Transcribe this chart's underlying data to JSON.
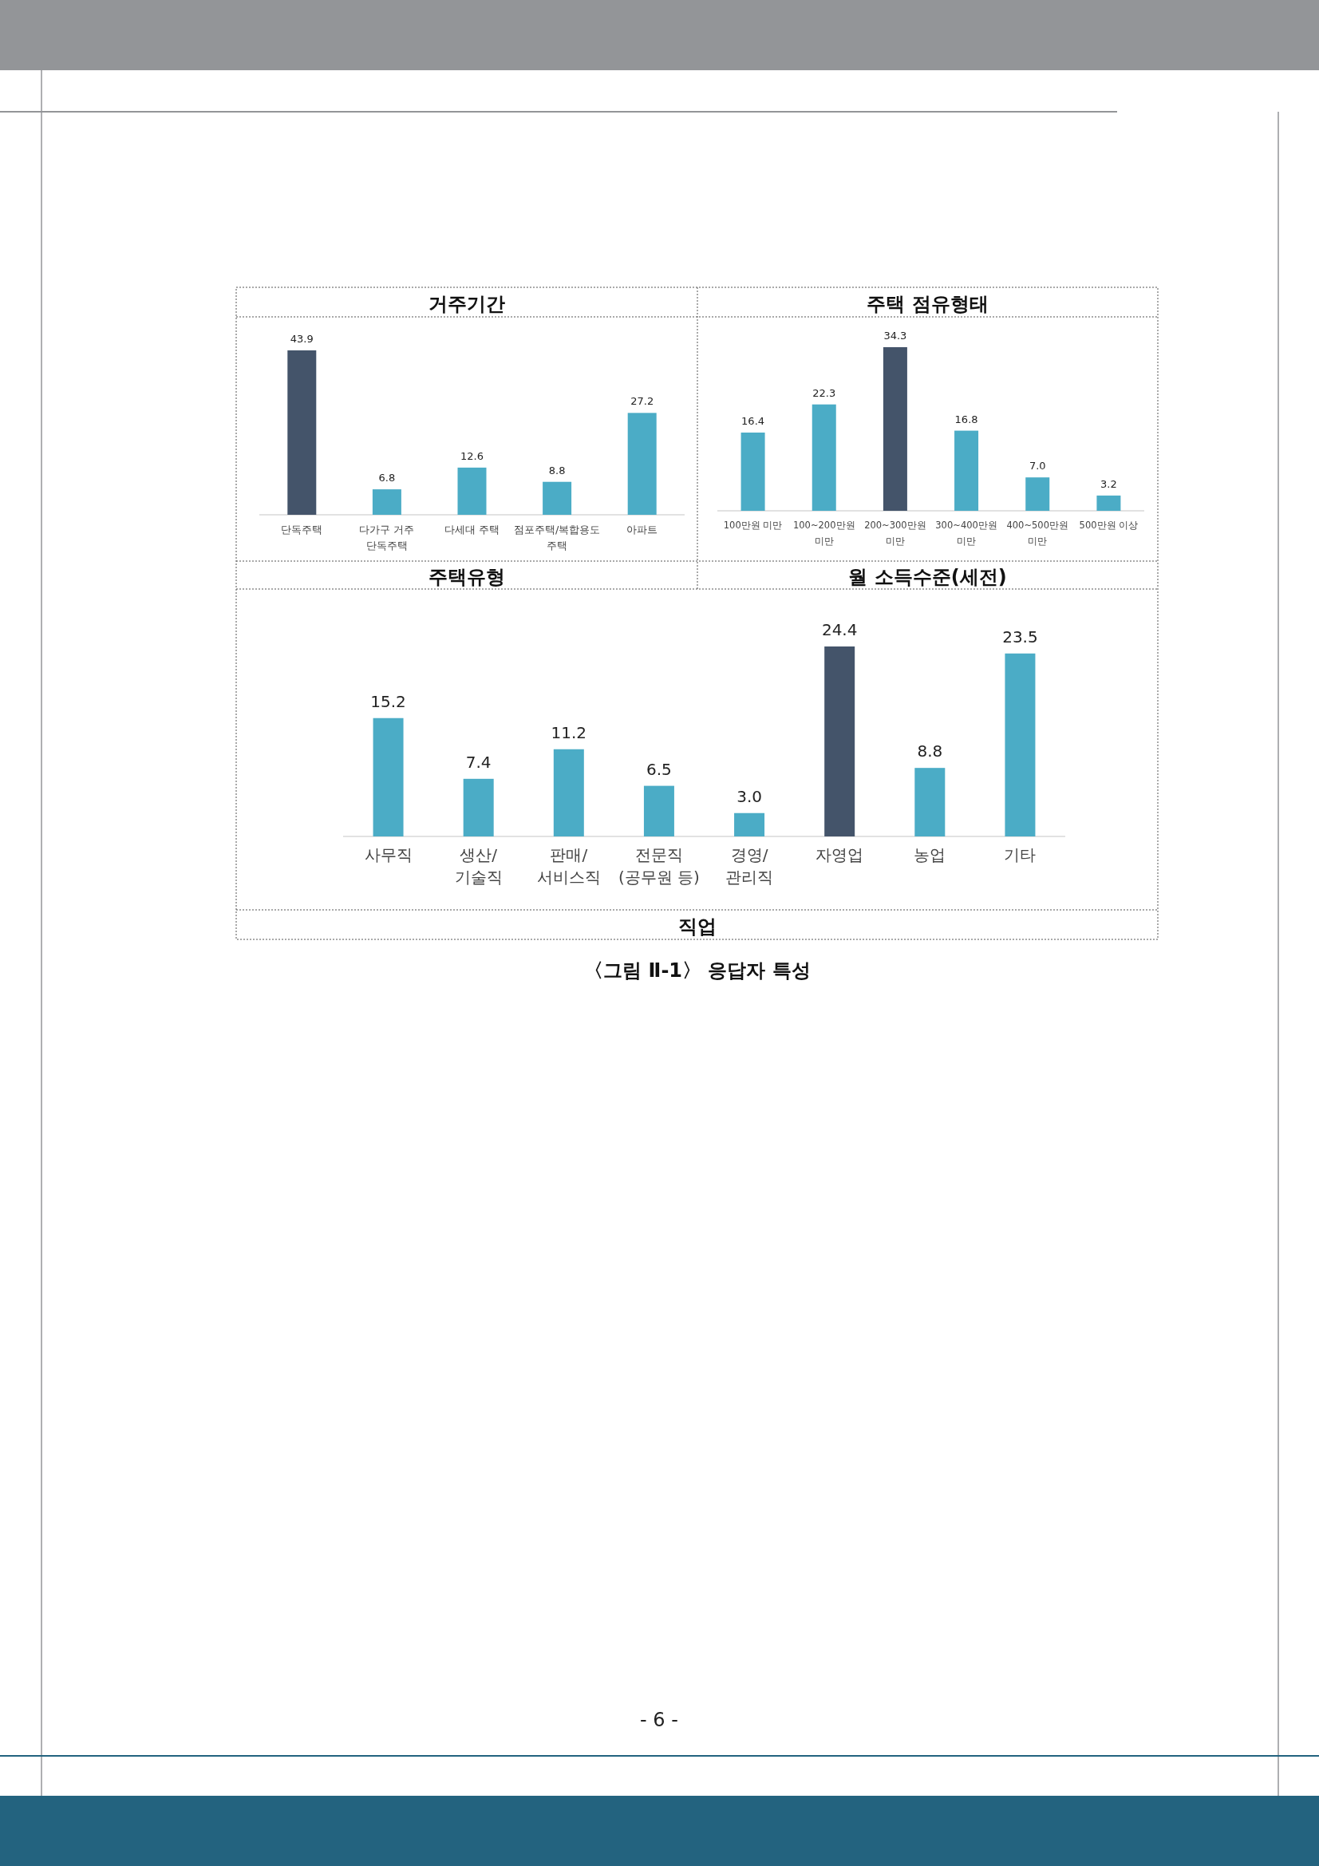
{
  "chart_data": [
    {
      "type": "bar",
      "title": "거주기간",
      "xlabel": "주택유형",
      "categories": [
        "단독주택",
        "다가구 거주\n단독주택",
        "다세대 주택",
        "점포주택/복합용도\n주택",
        "아파트"
      ],
      "values": [
        43.9,
        6.8,
        12.6,
        8.8,
        27.2
      ],
      "colors": [
        "#44546a",
        "#4bacc6",
        "#4bacc6",
        "#4bacc6",
        "#4bacc6"
      ],
      "value_labels": [
        "43.9",
        "6.8",
        "12.6",
        "8.8",
        "27.2"
      ]
    },
    {
      "type": "bar",
      "title": "주택 점유형태",
      "xlabel": "월 소득수준(세전)",
      "categories": [
        "100만원 미만",
        "100~200만원\n미만",
        "200~300만원\n미만",
        "300~400만원\n미만",
        "400~500만원\n미만",
        "500만원 이상"
      ],
      "values": [
        16.4,
        22.3,
        34.3,
        16.8,
        7.0,
        3.2
      ],
      "colors": [
        "#4bacc6",
        "#4bacc6",
        "#44546a",
        "#4bacc6",
        "#4bacc6",
        "#4bacc6"
      ],
      "value_labels": [
        "16.4",
        "22.3",
        "34.3",
        "16.8",
        "7.0",
        "3.2"
      ]
    },
    {
      "type": "bar",
      "xlabel": "직업",
      "categories": [
        "사무직",
        "생산/\n기술직",
        "판매/\n서비스직",
        "전문직\n(공무원 등)",
        "경영/\n관리직",
        "자영업",
        "농업",
        "기타"
      ],
      "values": [
        15.2,
        7.4,
        11.2,
        6.5,
        3.0,
        24.4,
        8.8,
        23.5
      ],
      "colors": [
        "#4bacc6",
        "#4bacc6",
        "#4bacc6",
        "#4bacc6",
        "#4bacc6",
        "#44546a",
        "#4bacc6",
        "#4bacc6"
      ],
      "value_labels": [
        "15.2",
        "7.4",
        "11.2",
        "6.5",
        "3.0",
        "24.4",
        "8.8",
        "23.5"
      ],
      "annotations": [
        "〈그림 Ⅱ-1〉 응답자 특성",
        "- 6 -"
      ]
    }
  ]
}
